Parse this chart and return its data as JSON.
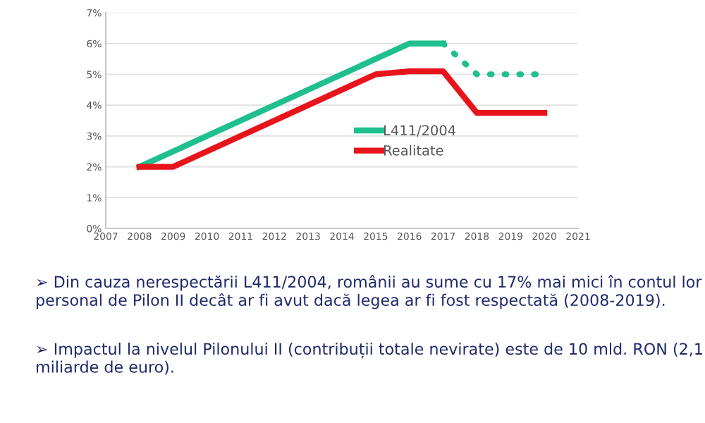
{
  "chart_data": {
    "type": "line",
    "series": [
      {
        "name": "L411/2004",
        "color": "#1fbf8f",
        "x": [
          2008,
          2016,
          2017
        ],
        "values": [
          2,
          6,
          6
        ],
        "line_style": "solid"
      },
      {
        "color": "#1fbf8f",
        "x": [
          2017,
          2018,
          2019,
          2020
        ],
        "values": [
          6,
          5,
          5,
          5
        ],
        "line_style": "dotted"
      },
      {
        "name": "Realitate",
        "color": "#e8141b",
        "x": [
          2008,
          2009,
          2015,
          2016,
          2017,
          2018,
          2020
        ],
        "values": [
          2,
          2,
          5,
          5.1,
          5.1,
          3.75,
          3.75
        ],
        "line_style": "solid"
      }
    ],
    "xlim": [
      2007,
      2021
    ],
    "xticks": [
      2007,
      2008,
      2009,
      2010,
      2011,
      2012,
      2013,
      2014,
      2015,
      2016,
      2017,
      2018,
      2019,
      2020,
      2021
    ],
    "ylim": [
      0,
      7
    ],
    "yticks": [
      {
        "value": 0,
        "label": "0%"
      },
      {
        "value": 1,
        "label": "1%"
      },
      {
        "value": 2,
        "label": "2%"
      },
      {
        "value": 3,
        "label": "3%"
      },
      {
        "value": 4,
        "label": "4%"
      },
      {
        "value": 5,
        "label": "5%"
      },
      {
        "value": 6,
        "label": "6%"
      },
      {
        "value": 7,
        "label": "7%"
      }
    ],
    "grid": "y",
    "legend": "center",
    "marker": "none",
    "annotations": [
      "➢ Din cauza nerespectării L411/2004, românii au sume cu 17% mai mici în contul lor personal de Pilon II decât ar fi avut dacă legea ar fi fost respectată (2008-2019).",
      "➢ Impactul la nivelul Pilonului II (contribuții totale nevirate) este de 10 mld. RON (2,1 miliarde de euro)."
    ]
  }
}
